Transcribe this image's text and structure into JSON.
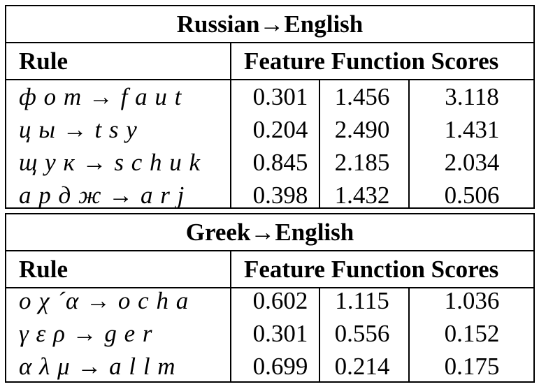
{
  "tables": [
    {
      "title": "Russian→English",
      "headers": {
        "rule": "Rule",
        "scores": "Feature Function Scores"
      },
      "rows": [
        {
          "rule": "ф о т → f a u t",
          "s1": "0.301",
          "s2": "1.456",
          "s3": "3.118"
        },
        {
          "rule": "ц ы → t s y",
          "s1": "0.204",
          "s2": "2.490",
          "s3": "1.431"
        },
        {
          "rule": "щ у к → s c h u k",
          "s1": "0.845",
          "s2": "2.185",
          "s3": "2.034"
        },
        {
          "rule": "а р д ж → a r j",
          "s1": "0.398",
          "s2": "1.432",
          "s3": "0.506"
        }
      ]
    },
    {
      "title": "Greek→English",
      "headers": {
        "rule": "Rule",
        "scores": "Feature Function Scores"
      },
      "rows": [
        {
          "rule": "ο χ ´α → o c h a",
          "s1": "0.602",
          "s2": "1.115",
          "s3": "1.036"
        },
        {
          "rule": "γ ε ρ → g e r",
          "s1": "0.301",
          "s2": "0.556",
          "s3": "0.152"
        },
        {
          "rule": "α λ μ → a l l m",
          "s1": "0.699",
          "s2": "0.214",
          "s3": "0.175"
        }
      ]
    }
  ]
}
